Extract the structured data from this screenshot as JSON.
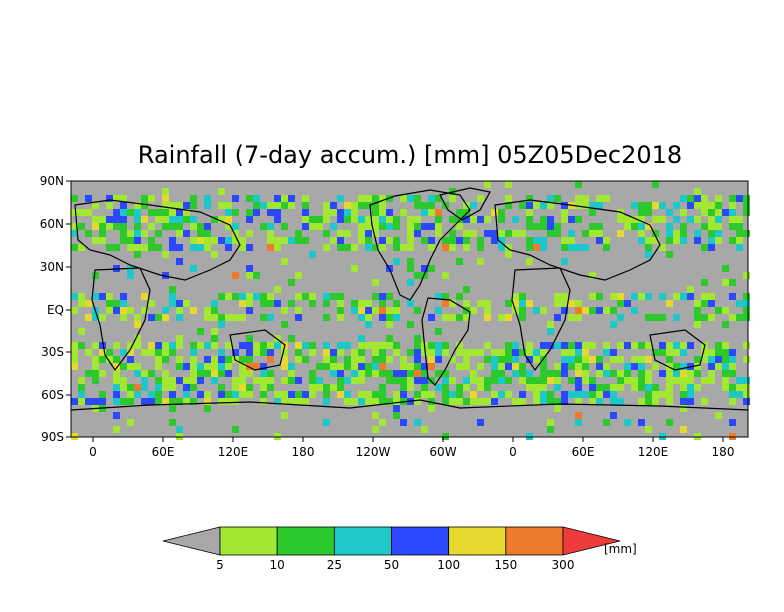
{
  "title": "Rainfall (7-day accum.) [mm] 05Z05Dec2018",
  "map": {
    "background_color": "#a8a8a8",
    "coastline_color": "#000000",
    "y_ticks": [
      "90N",
      "60N",
      "30N",
      "EQ",
      "30S",
      "60S",
      "90S"
    ],
    "x_ticks": [
      "0",
      "60E",
      "120E",
      "180",
      "120W",
      "60W",
      "0",
      "60E",
      "120E",
      "180"
    ]
  },
  "colorbar": {
    "unit_label": "[mm]",
    "levels": [
      "5",
      "10",
      "25",
      "50",
      "100",
      "150",
      "300"
    ],
    "colors": [
      "#a8a8a8",
      "#a2e832",
      "#2cc82c",
      "#1ec8c8",
      "#2c48ff",
      "#e6d82e",
      "#ee7a2c",
      "#ee3c3c"
    ]
  }
}
